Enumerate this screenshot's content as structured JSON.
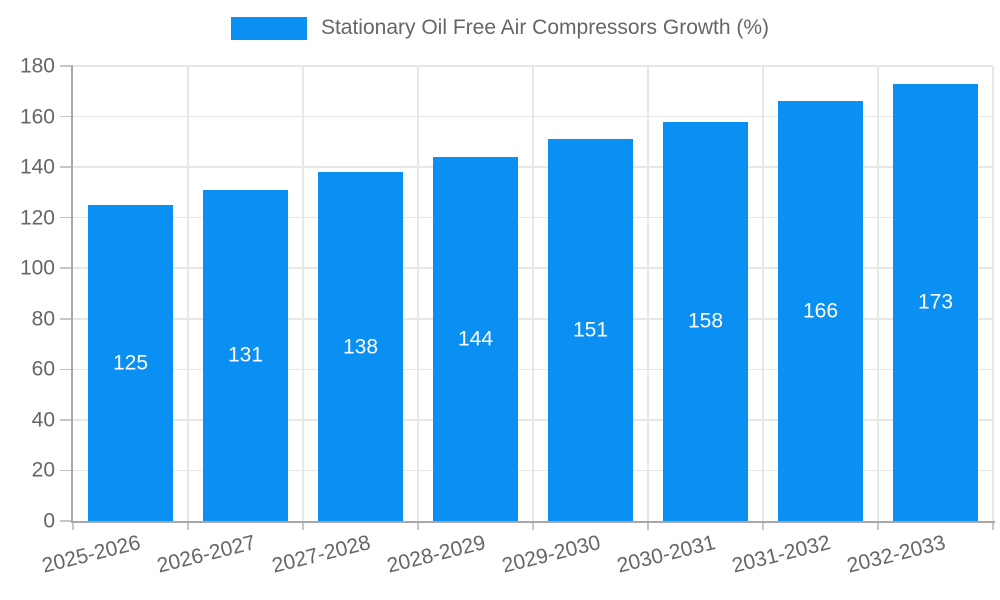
{
  "chart_data": {
    "type": "bar",
    "title": "Stationary Oil Free Air Compressors Growth (%)",
    "legend": {
      "position": "top",
      "label": "Stationary Oil Free Air Compressors Growth (%)"
    },
    "categories": [
      "2025-2026",
      "2026-2027",
      "2027-2028",
      "2028-2029",
      "2029-2030",
      "2030-2031",
      "2031-2032",
      "2032-2033"
    ],
    "values": [
      125,
      131,
      138,
      144,
      151,
      158,
      166,
      173
    ],
    "xlabel": "",
    "ylabel": "",
    "ylim": [
      0,
      180
    ],
    "yticks": [
      0,
      20,
      40,
      60,
      80,
      100,
      120,
      140,
      160,
      180
    ],
    "grid": true,
    "x_label_rotation_deg": -14,
    "colors": {
      "bar": "#0a8ff2",
      "bar_label_text": "#ffffff",
      "axis_text": "#666666",
      "gridline": "#e7e7e7",
      "axis_line": "#a8a8a8",
      "tick": "#c6c6c6",
      "background": "#ffffff"
    }
  }
}
